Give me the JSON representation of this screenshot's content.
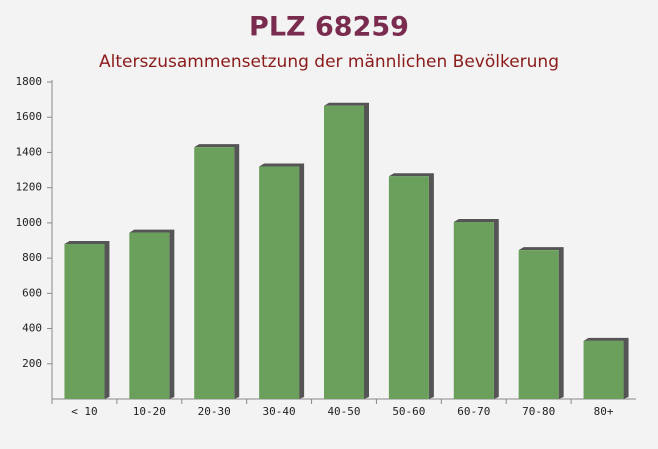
{
  "chart_data": {
    "type": "bar",
    "title": "PLZ 68259",
    "subtitle": "Alterszusammensetzung der männlichen Bevölkerung",
    "categories": [
      "< 10",
      "10-20",
      "20-30",
      "30-40",
      "40-50",
      "50-60",
      "60-70",
      "70-80",
      "80+"
    ],
    "values": [
      880,
      945,
      1430,
      1320,
      1665,
      1265,
      1005,
      845,
      330
    ],
    "color": "#6aa05c",
    "ylim": [
      0,
      1800
    ],
    "yticks": [
      200,
      400,
      600,
      800,
      1000,
      1200,
      1400,
      1600,
      1800
    ],
    "grid": false
  }
}
